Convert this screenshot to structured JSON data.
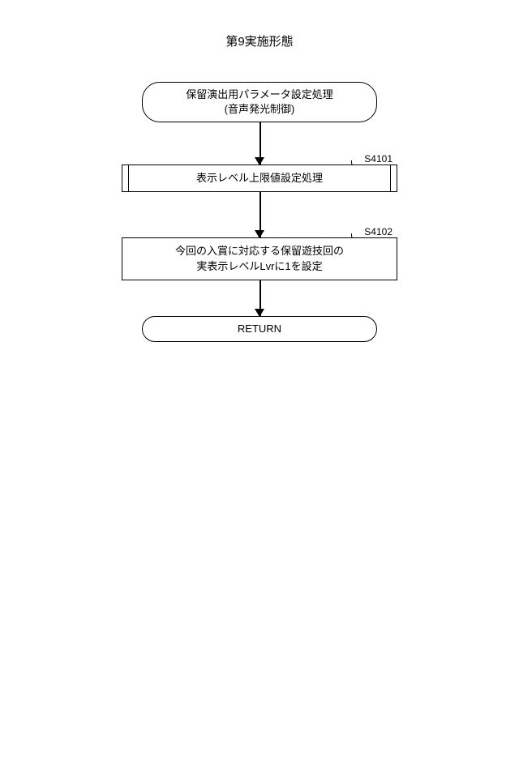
{
  "title": "第9実施形態",
  "start": {
    "line1": "保留演出用パラメータ設定処理",
    "line2": "(音声発光制御)"
  },
  "steps": [
    {
      "label": "S4101",
      "text": "表示レベル上限値設定処理",
      "type": "predefined"
    },
    {
      "label": "S4102",
      "line1": "今回の入賞に対応する保留遊技回の",
      "line2": "実表示レベルLvrに1を設定",
      "type": "process"
    }
  ],
  "end": "RETURN",
  "arrow_heights": {
    "h1": 52,
    "h2": 56,
    "h3": 44
  },
  "colors": {
    "line": "#000000",
    "bg": "#ffffff"
  }
}
